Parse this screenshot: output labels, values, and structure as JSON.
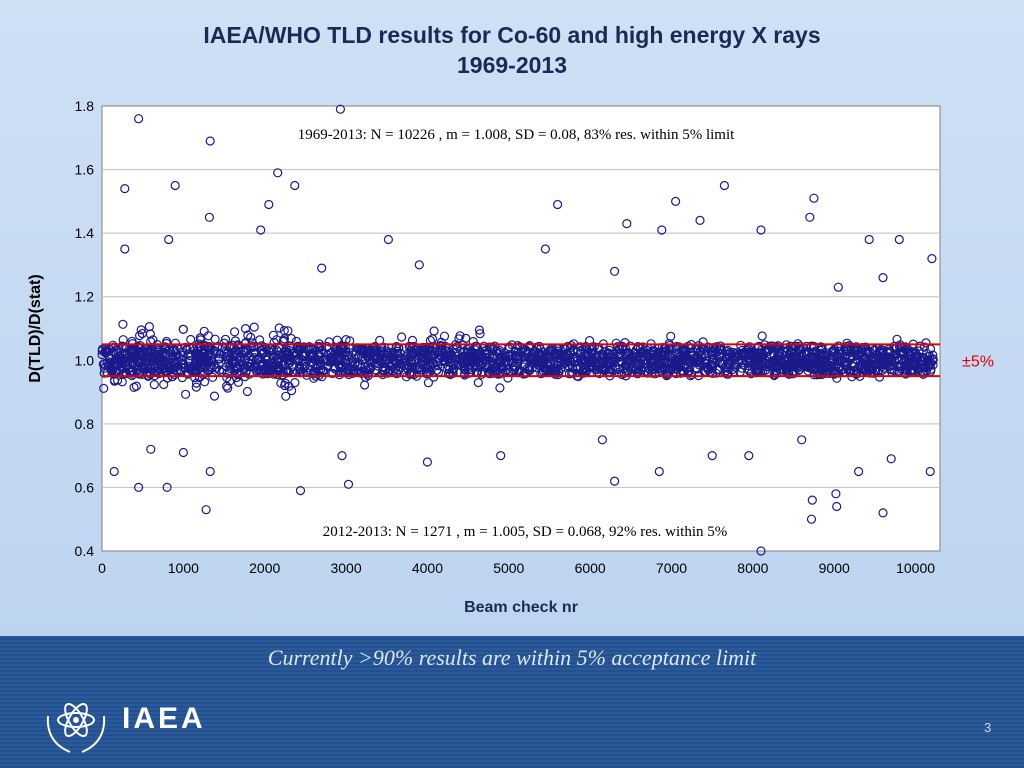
{
  "slide": {
    "title_line1": "IAEA/WHO TLD results for Co-60 and high energy X rays",
    "title_line2": "1969-2013",
    "caption": "Currently >90% results are within 5% acceptance limit",
    "logo_text": "IAEA",
    "page_number": "3",
    "colors": {
      "background": "#c4d9f3",
      "marker": "#1a1a8c",
      "limit_line": "#e00000",
      "footer": "#2a5a9c",
      "title": "#1a2a55"
    }
  },
  "chart_data": {
    "type": "scatter",
    "xlabel": "Beam check nr",
    "ylabel": "D(TLD)/D(stat)",
    "xlim": [
      0,
      10300
    ],
    "ylim": [
      0.4,
      1.8
    ],
    "xticks": [
      0,
      1000,
      2000,
      3000,
      4000,
      5000,
      6000,
      7000,
      8000,
      9000,
      10000
    ],
    "yticks": [
      0.4,
      0.6,
      0.8,
      1.0,
      1.2,
      1.4,
      1.6,
      1.8
    ],
    "ytick_labels": [
      "0.4",
      "0.6",
      "0.8",
      "1.0",
      "1.2",
      "1.4",
      "1.6",
      "1.8"
    ],
    "grid": "horizontal",
    "limit_lines": [
      0.95,
      1.05
    ],
    "limit_label": "±5%",
    "annotation_top": "1969-2013: N = 10226 , m = 1.008, SD = 0.08, 83% res. within 5% limit",
    "annotation_bottom": "2012-2013: N = 1271 , m = 1.005, SD = 0.068, 92% res. within 5%",
    "series": [
      {
        "marker": "open-circle",
        "outliers": [
          [
            450,
            1.76
          ],
          [
            2930,
            1.79
          ],
          [
            1330,
            1.69
          ],
          [
            280,
            1.54
          ],
          [
            900,
            1.55
          ],
          [
            2160,
            1.59
          ],
          [
            2370,
            1.55
          ],
          [
            2050,
            1.49
          ],
          [
            5600,
            1.49
          ],
          [
            7050,
            1.5
          ],
          [
            7650,
            1.55
          ],
          [
            8750,
            1.51
          ],
          [
            8700,
            1.45
          ],
          [
            1320,
            1.45
          ],
          [
            1950,
            1.41
          ],
          [
            820,
            1.38
          ],
          [
            3520,
            1.38
          ],
          [
            6450,
            1.43
          ],
          [
            6880,
            1.41
          ],
          [
            7350,
            1.44
          ],
          [
            8100,
            1.41
          ],
          [
            9430,
            1.38
          ],
          [
            9800,
            1.38
          ],
          [
            10200,
            1.32
          ],
          [
            280,
            1.35
          ],
          [
            5450,
            1.35
          ],
          [
            6300,
            1.28
          ],
          [
            3900,
            1.3
          ],
          [
            2700,
            1.29
          ],
          [
            9600,
            1.26
          ],
          [
            9050,
            1.23
          ],
          [
            450,
            0.6
          ],
          [
            800,
            0.6
          ],
          [
            1280,
            0.53
          ],
          [
            2440,
            0.59
          ],
          [
            3030,
            0.61
          ],
          [
            6300,
            0.62
          ],
          [
            8100,
            0.4
          ],
          [
            8730,
            0.56
          ],
          [
            8720,
            0.5
          ],
          [
            9020,
            0.58
          ],
          [
            9030,
            0.54
          ],
          [
            9600,
            0.52
          ],
          [
            10180,
            0.65
          ],
          [
            9300,
            0.65
          ],
          [
            6850,
            0.65
          ],
          [
            1330,
            0.65
          ],
          [
            150,
            0.65
          ],
          [
            2950,
            0.7
          ],
          [
            4000,
            0.68
          ],
          [
            4900,
            0.7
          ],
          [
            6150,
            0.75
          ],
          [
            7500,
            0.7
          ],
          [
            7950,
            0.7
          ],
          [
            8600,
            0.75
          ],
          [
            9700,
            0.69
          ],
          [
            1000,
            0.71
          ],
          [
            600,
            0.72
          ]
        ]
      }
    ]
  }
}
